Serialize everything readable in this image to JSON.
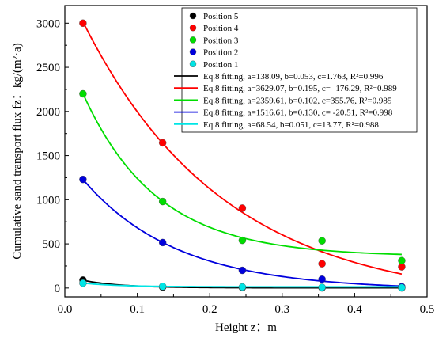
{
  "chart_data": {
    "type": "scatter",
    "xlabel": "Height  z：m",
    "ylabel": "Cumulative sand transport flux  fz：kg/(m²·a)",
    "xlim": [
      0.0,
      0.5
    ],
    "ylim": [
      -100,
      3200
    ],
    "xticks": [
      0.0,
      0.1,
      0.2,
      0.3,
      0.4,
      0.5
    ],
    "yticks": [
      0,
      500,
      1000,
      1500,
      2000,
      2500,
      3000
    ],
    "xtick_labels": [
      "0.0",
      "0.1",
      "0.2",
      "0.3",
      "0.4",
      "0.5"
    ],
    "ytick_labels": [
      "0",
      "500",
      "1000",
      "1500",
      "2000",
      "2500",
      "3000"
    ],
    "legend_position": "top-right",
    "series": [
      {
        "name": "Position 5",
        "color": "#000000",
        "x": [
          0.025,
          0.135,
          0.245,
          0.355,
          0.465
        ],
        "y": [
          90,
          10,
          5,
          2,
          2
        ]
      },
      {
        "name": "Position 4",
        "color": "#ff0000",
        "x": [
          0.025,
          0.135,
          0.245,
          0.355,
          0.465
        ],
        "y": [
          3000,
          1645,
          905,
          275,
          240
        ]
      },
      {
        "name": "Position 3",
        "color": "#00dd00",
        "x": [
          0.025,
          0.135,
          0.245,
          0.355,
          0.465
        ],
        "y": [
          2200,
          980,
          540,
          535,
          310
        ]
      },
      {
        "name": "Position 2",
        "color": "#0000dd",
        "x": [
          0.025,
          0.135,
          0.245,
          0.355,
          0.465
        ],
        "y": [
          1230,
          515,
          200,
          100,
          15
        ]
      },
      {
        "name": "Position 1",
        "color": "#00e5e5",
        "x": [
          0.025,
          0.135,
          0.245,
          0.355,
          0.465
        ],
        "y": [
          55,
          18,
          12,
          8,
          5
        ]
      }
    ],
    "fits": [
      {
        "name": "Eq.8 fitting, a=138.09, b=0.053, c=1.763, R²=0.996",
        "color": "#000000",
        "a": 138.09,
        "b": 0.053,
        "c": 1.763
      },
      {
        "name": "Eq.8 fitting, a=3629.07, b=0.195, c= -176.29, R²=0.989",
        "color": "#ff0000",
        "a": 3629.07,
        "b": 0.195,
        "c": -176.29
      },
      {
        "name": "Eq.8 fitting, a=2359.61, b=0.102, c=355.76, R²=0.985",
        "color": "#00dd00",
        "a": 2359.61,
        "b": 0.102,
        "c": 355.76
      },
      {
        "name": "Eq.8 fitting, a=1516.61, b=0.130, c= -20.51, R²=0.998",
        "color": "#0000dd",
        "a": 1516.61,
        "b": 0.13,
        "c": -20.51
      },
      {
        "name": "Eq.8 fitting, a=68.54, b=0.051, c=13.77, R²=0.988",
        "color": "#00e5e5",
        "a": 68.54,
        "b": 0.051,
        "c": 13.77
      }
    ]
  }
}
